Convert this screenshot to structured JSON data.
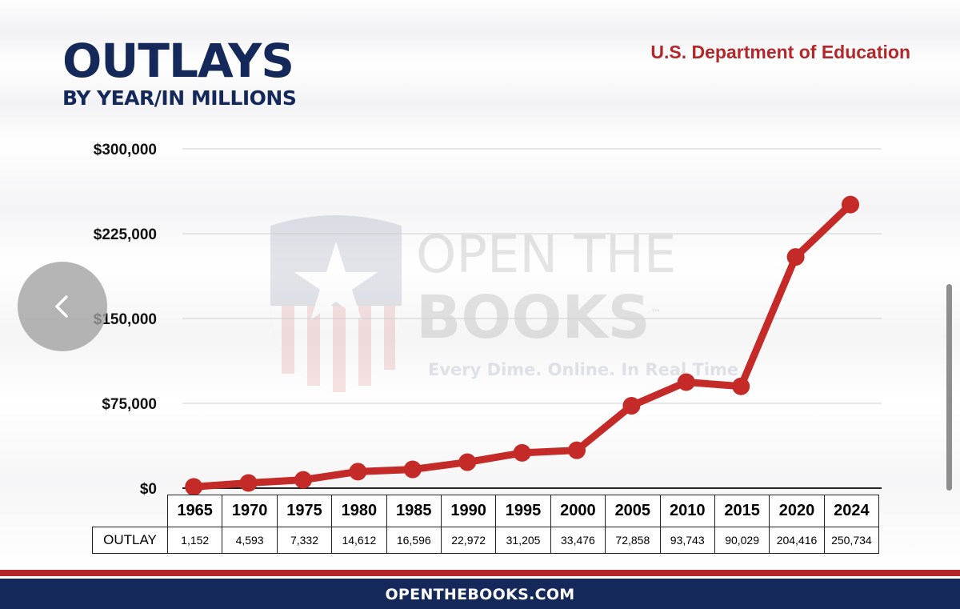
{
  "header": {
    "title": "OUTLAYS",
    "subtitle": "BY YEAR/IN MILLIONS",
    "agency": "U.S. Department of Education"
  },
  "watermark": {
    "line1": "OPEN THE",
    "line2": "BOOKS",
    "trademark": "™",
    "tagline": "Every Dime. Online. In Real Time"
  },
  "footer": {
    "site": "OPENTHEBOOKS.COM"
  },
  "navigation": {
    "prev_icon": "chevron-left-icon"
  },
  "colors": {
    "line": "#c42a27",
    "title": "#14295a",
    "agency": "#b3272a",
    "footer": "#14295a"
  },
  "chart_data": {
    "type": "line",
    "title": "OUTLAYS",
    "subtitle": "BY YEAR/IN MILLIONS",
    "x": [
      "1965",
      "1970",
      "1975",
      "1980",
      "1985",
      "1990",
      "1995",
      "2000",
      "2005",
      "2010",
      "2015",
      "2020",
      "2024"
    ],
    "series": [
      {
        "name": "OUTLAY",
        "values": [
          1152,
          4593,
          7332,
          14612,
          16596,
          22972,
          31205,
          33476,
          72858,
          93743,
          90029,
          204416,
          250734
        ],
        "labels": [
          "1,152",
          "4,593",
          "7,332",
          "14,612",
          "16,596",
          "22,972",
          "31,205",
          "33,476",
          "72,858",
          "93,743",
          "90,029",
          "204,416",
          "250,734"
        ]
      }
    ],
    "yticks": [
      0,
      75000,
      150000,
      225000,
      300000
    ],
    "ytick_labels": [
      "$0",
      "$75,000",
      "$150,000",
      "$225,000",
      "$300,000"
    ],
    "ylim": [
      0,
      300000
    ],
    "grid": true,
    "table_row_label": "OUTLAY"
  }
}
